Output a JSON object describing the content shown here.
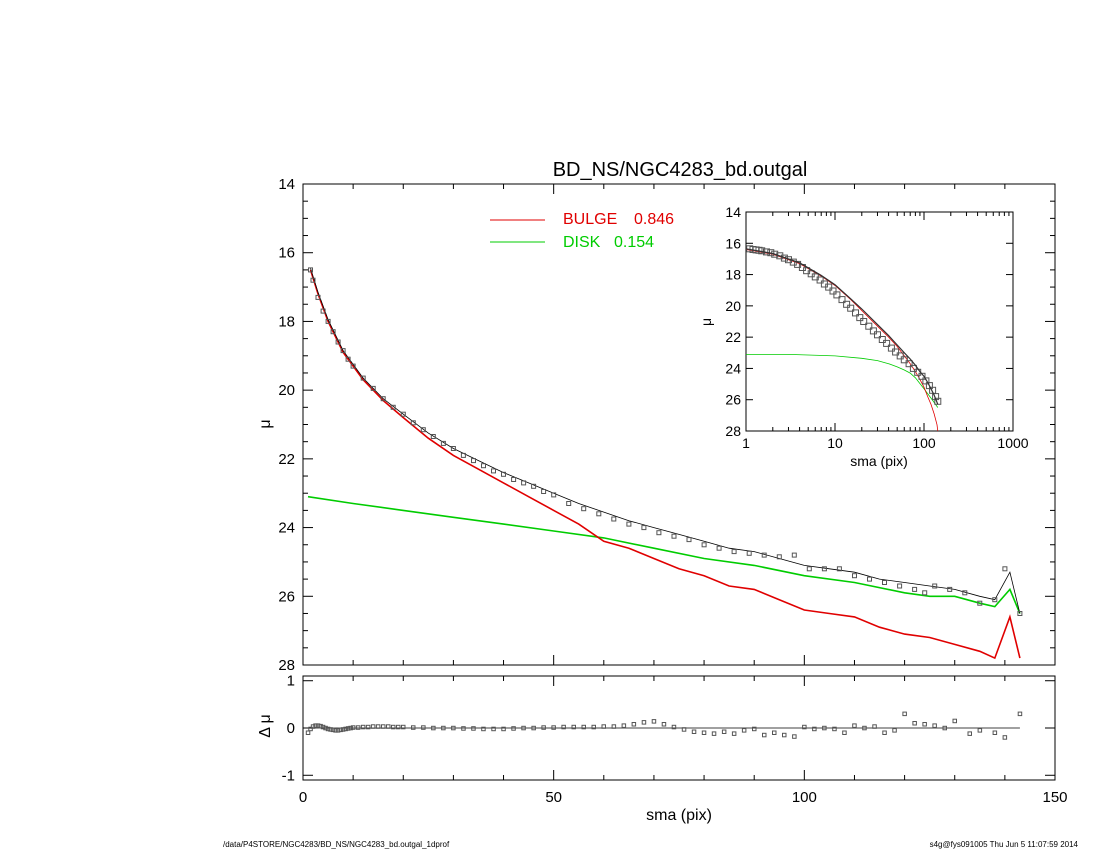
{
  "colors": {
    "bulge": "#e00000",
    "disk": "#00cc00",
    "total": "#000000",
    "points": "#555555"
  },
  "footer": {
    "left": "/data/P4STORE/NGC4283/BD_NS/NGC4283_bd.outgal_1dprof",
    "right": "s4g@fys091005  Thu Jun  5 11:07:59 2014"
  },
  "chart_data": [
    {
      "id": "main",
      "type": "line",
      "title": "BD_NS/NGC4283_bd.outgal",
      "ylabel": "μ",
      "xlabel": "",
      "xlim": [
        0,
        150
      ],
      "ylim": [
        28,
        14
      ],
      "yticks": [
        "14",
        "16",
        "18",
        "20",
        "22",
        "24",
        "26",
        "28"
      ],
      "legend": {
        "placement": "top-center",
        "entries": [
          {
            "name": "BULGE",
            "value": "0.846",
            "color": "#e00000"
          },
          {
            "name": "DISK",
            "value": "0.154",
            "color": "#00cc00"
          }
        ]
      },
      "bulge": {
        "x": [
          1.5,
          3,
          5,
          8,
          12,
          16,
          20,
          25,
          30,
          35,
          40,
          45,
          50,
          55,
          60,
          65,
          70,
          75,
          80,
          85,
          90,
          95,
          100,
          105,
          110,
          115,
          120,
          125,
          130,
          135,
          138,
          141,
          143
        ],
        "y": [
          16.5,
          17.2,
          18.0,
          18.9,
          19.7,
          20.3,
          20.8,
          21.4,
          21.9,
          22.3,
          22.7,
          23.1,
          23.5,
          23.9,
          24.4,
          24.6,
          24.9,
          25.2,
          25.4,
          25.7,
          25.8,
          26.1,
          26.4,
          26.5,
          26.6,
          26.9,
          27.1,
          27.2,
          27.4,
          27.6,
          27.8,
          26.6,
          27.8
        ]
      },
      "disk": {
        "x": [
          1,
          10,
          20,
          30,
          40,
          50,
          60,
          70,
          80,
          90,
          100,
          110,
          120,
          125,
          130,
          135,
          138,
          141,
          143
        ],
        "y": [
          23.1,
          23.3,
          23.5,
          23.7,
          23.9,
          24.1,
          24.3,
          24.6,
          24.9,
          25.1,
          25.4,
          25.6,
          25.9,
          26.0,
          26.0,
          26.2,
          26.3,
          25.8,
          26.5
        ]
      },
      "total": {
        "x": [
          1.5,
          3,
          5,
          8,
          12,
          16,
          20,
          25,
          30,
          35,
          40,
          45,
          50,
          55,
          60,
          65,
          70,
          75,
          80,
          85,
          90,
          95,
          100,
          105,
          110,
          115,
          120,
          125,
          130,
          135,
          138,
          141,
          143
        ],
        "y": [
          16.45,
          17.15,
          17.95,
          18.85,
          19.65,
          20.25,
          20.7,
          21.25,
          21.7,
          22.05,
          22.4,
          22.7,
          23.0,
          23.3,
          23.55,
          23.8,
          24.0,
          24.2,
          24.4,
          24.6,
          24.7,
          24.9,
          25.1,
          25.2,
          25.3,
          25.5,
          25.6,
          25.7,
          25.8,
          26.0,
          26.1,
          25.3,
          26.5
        ]
      },
      "points": {
        "x": [
          1.5,
          2,
          3,
          4,
          5,
          6,
          7,
          8,
          9,
          10,
          12,
          14,
          16,
          18,
          20,
          22,
          24,
          26,
          28,
          30,
          32,
          34,
          36,
          38,
          40,
          42,
          44,
          46,
          48,
          50,
          53,
          56,
          59,
          62,
          65,
          68,
          71,
          74,
          77,
          80,
          83,
          86,
          89,
          92,
          95,
          98,
          101,
          104,
          107,
          110,
          113,
          116,
          119,
          122,
          124,
          126,
          129,
          132,
          135,
          138,
          140,
          143
        ],
        "y": [
          16.5,
          16.8,
          17.3,
          17.7,
          18.0,
          18.3,
          18.6,
          18.85,
          19.1,
          19.3,
          19.65,
          19.95,
          20.25,
          20.5,
          20.7,
          20.95,
          21.15,
          21.35,
          21.55,
          21.7,
          21.9,
          22.05,
          22.2,
          22.35,
          22.45,
          22.6,
          22.7,
          22.8,
          22.95,
          23.05,
          23.3,
          23.45,
          23.6,
          23.75,
          23.9,
          24.0,
          24.15,
          24.25,
          24.35,
          24.5,
          24.6,
          24.7,
          24.75,
          24.8,
          24.85,
          24.8,
          25.2,
          25.2,
          25.2,
          25.4,
          25.5,
          25.6,
          25.7,
          25.8,
          25.9,
          25.7,
          25.8,
          25.9,
          26.2,
          26.1,
          25.2,
          26.5
        ]
      }
    },
    {
      "id": "residual",
      "type": "scatter",
      "ylabel": "Δ μ",
      "xlabel": "sma (pix)",
      "xlim": [
        0,
        150
      ],
      "ylim": [
        -1.1,
        1.1
      ],
      "yticks": [
        "1",
        "0",
        "-1"
      ],
      "xticks": [
        "0",
        "50",
        "100",
        "150"
      ],
      "points": {
        "x": [
          1,
          1.5,
          2,
          2.5,
          3,
          3.5,
          4,
          4.5,
          5,
          5.5,
          6,
          6.5,
          7,
          7.5,
          8,
          8.5,
          9,
          9.5,
          10,
          11,
          12,
          13,
          14,
          15,
          16,
          17,
          18,
          19,
          20,
          22,
          24,
          26,
          28,
          30,
          32,
          34,
          36,
          38,
          40,
          42,
          44,
          46,
          48,
          50,
          52,
          54,
          56,
          58,
          60,
          62,
          64,
          66,
          68,
          70,
          72,
          74,
          76,
          78,
          80,
          82,
          84,
          86,
          88,
          90,
          92,
          94,
          96,
          98,
          100,
          102,
          104,
          106,
          108,
          110,
          112,
          114,
          116,
          118,
          120,
          122,
          124,
          126,
          128,
          130,
          133,
          135,
          138,
          140,
          143
        ],
        "y": [
          -0.1,
          -0.02,
          0.03,
          0.05,
          0.05,
          0.04,
          0.02,
          0.0,
          -0.02,
          -0.03,
          -0.04,
          -0.05,
          -0.05,
          -0.04,
          -0.03,
          -0.02,
          -0.01,
          0.0,
          0.01,
          0.01,
          0.02,
          0.02,
          0.03,
          0.03,
          0.03,
          0.03,
          0.02,
          0.02,
          0.02,
          0.01,
          0.01,
          0.0,
          0.0,
          0.0,
          -0.01,
          -0.01,
          -0.02,
          -0.02,
          -0.02,
          -0.01,
          0.0,
          0.0,
          0.01,
          0.01,
          0.02,
          0.02,
          0.02,
          0.02,
          0.03,
          0.03,
          0.05,
          0.08,
          0.12,
          0.14,
          0.08,
          0.02,
          -0.03,
          -0.08,
          -0.1,
          -0.12,
          -0.08,
          -0.12,
          -0.05,
          -0.02,
          -0.15,
          -0.1,
          -0.15,
          -0.18,
          0.02,
          -0.02,
          0.0,
          -0.02,
          -0.1,
          0.05,
          0.0,
          0.03,
          -0.1,
          -0.05,
          0.3,
          0.1,
          0.08,
          0.05,
          0.0,
          0.15,
          -0.12,
          -0.05,
          -0.1,
          -0.2,
          0.3
        ]
      }
    },
    {
      "id": "inset",
      "type": "line",
      "xscale": "log",
      "ylabel": "μ",
      "xlabel": "sma (pix)",
      "xlim": [
        1,
        1000
      ],
      "ylim": [
        28,
        14
      ],
      "yticks": [
        "14",
        "16",
        "18",
        "20",
        "22",
        "24",
        "26",
        "28"
      ],
      "xticks": [
        "1",
        "10",
        "100",
        "1000"
      ],
      "bulge": {
        "x": [
          1,
          2,
          4,
          7,
          10,
          15,
          20,
          30,
          40,
          50,
          60,
          70,
          80,
          90,
          100,
          110,
          120,
          130,
          140,
          143
        ],
        "y": [
          16.4,
          16.7,
          17.3,
          18.1,
          18.7,
          19.6,
          20.3,
          21.3,
          22.0,
          22.6,
          23.2,
          23.7,
          24.2,
          24.7,
          25.2,
          25.8,
          26.3,
          26.9,
          27.6,
          28.0
        ]
      },
      "disk": {
        "x": [
          1,
          3,
          10,
          20,
          30,
          40,
          50,
          60,
          70,
          80,
          100,
          120,
          143
        ],
        "y": [
          23.1,
          23.1,
          23.2,
          23.35,
          23.5,
          23.7,
          23.9,
          24.1,
          24.3,
          24.6,
          25.3,
          25.9,
          26.5
        ]
      },
      "total": {
        "x": [
          1,
          2,
          4,
          7,
          10,
          15,
          20,
          30,
          40,
          50,
          60,
          70,
          80,
          90,
          100,
          110,
          120,
          130,
          143
        ],
        "y": [
          16.35,
          16.65,
          17.25,
          18.05,
          18.65,
          19.55,
          20.2,
          21.2,
          21.9,
          22.5,
          23.0,
          23.4,
          23.8,
          24.2,
          24.5,
          24.9,
          25.3,
          25.7,
          26.3
        ]
      },
      "points": {
        "x": [
          1.1,
          1.2,
          1.3,
          1.4,
          1.5,
          1.7,
          1.9,
          2.1,
          2.4,
          2.7,
          3,
          3.4,
          3.8,
          4.3,
          4.8,
          5.4,
          6,
          6.8,
          7.6,
          8.5,
          9.5,
          10.5,
          12,
          13.5,
          15,
          17,
          19,
          21,
          24,
          27,
          30,
          34,
          38,
          43,
          48,
          54,
          60,
          68,
          76,
          85,
          95,
          105,
          115,
          125,
          135,
          143
        ],
        "y": [
          16.35,
          16.4,
          16.42,
          16.45,
          16.48,
          16.55,
          16.6,
          16.7,
          16.8,
          16.95,
          17.05,
          17.2,
          17.35,
          17.55,
          17.75,
          17.95,
          18.15,
          18.35,
          18.6,
          18.8,
          19.05,
          19.3,
          19.6,
          19.9,
          20.15,
          20.45,
          20.75,
          21.0,
          21.3,
          21.6,
          21.85,
          22.15,
          22.4,
          22.7,
          22.95,
          23.2,
          23.45,
          23.7,
          24.0,
          24.25,
          24.5,
          24.8,
          25.1,
          25.4,
          25.8,
          26.1
        ]
      }
    }
  ]
}
